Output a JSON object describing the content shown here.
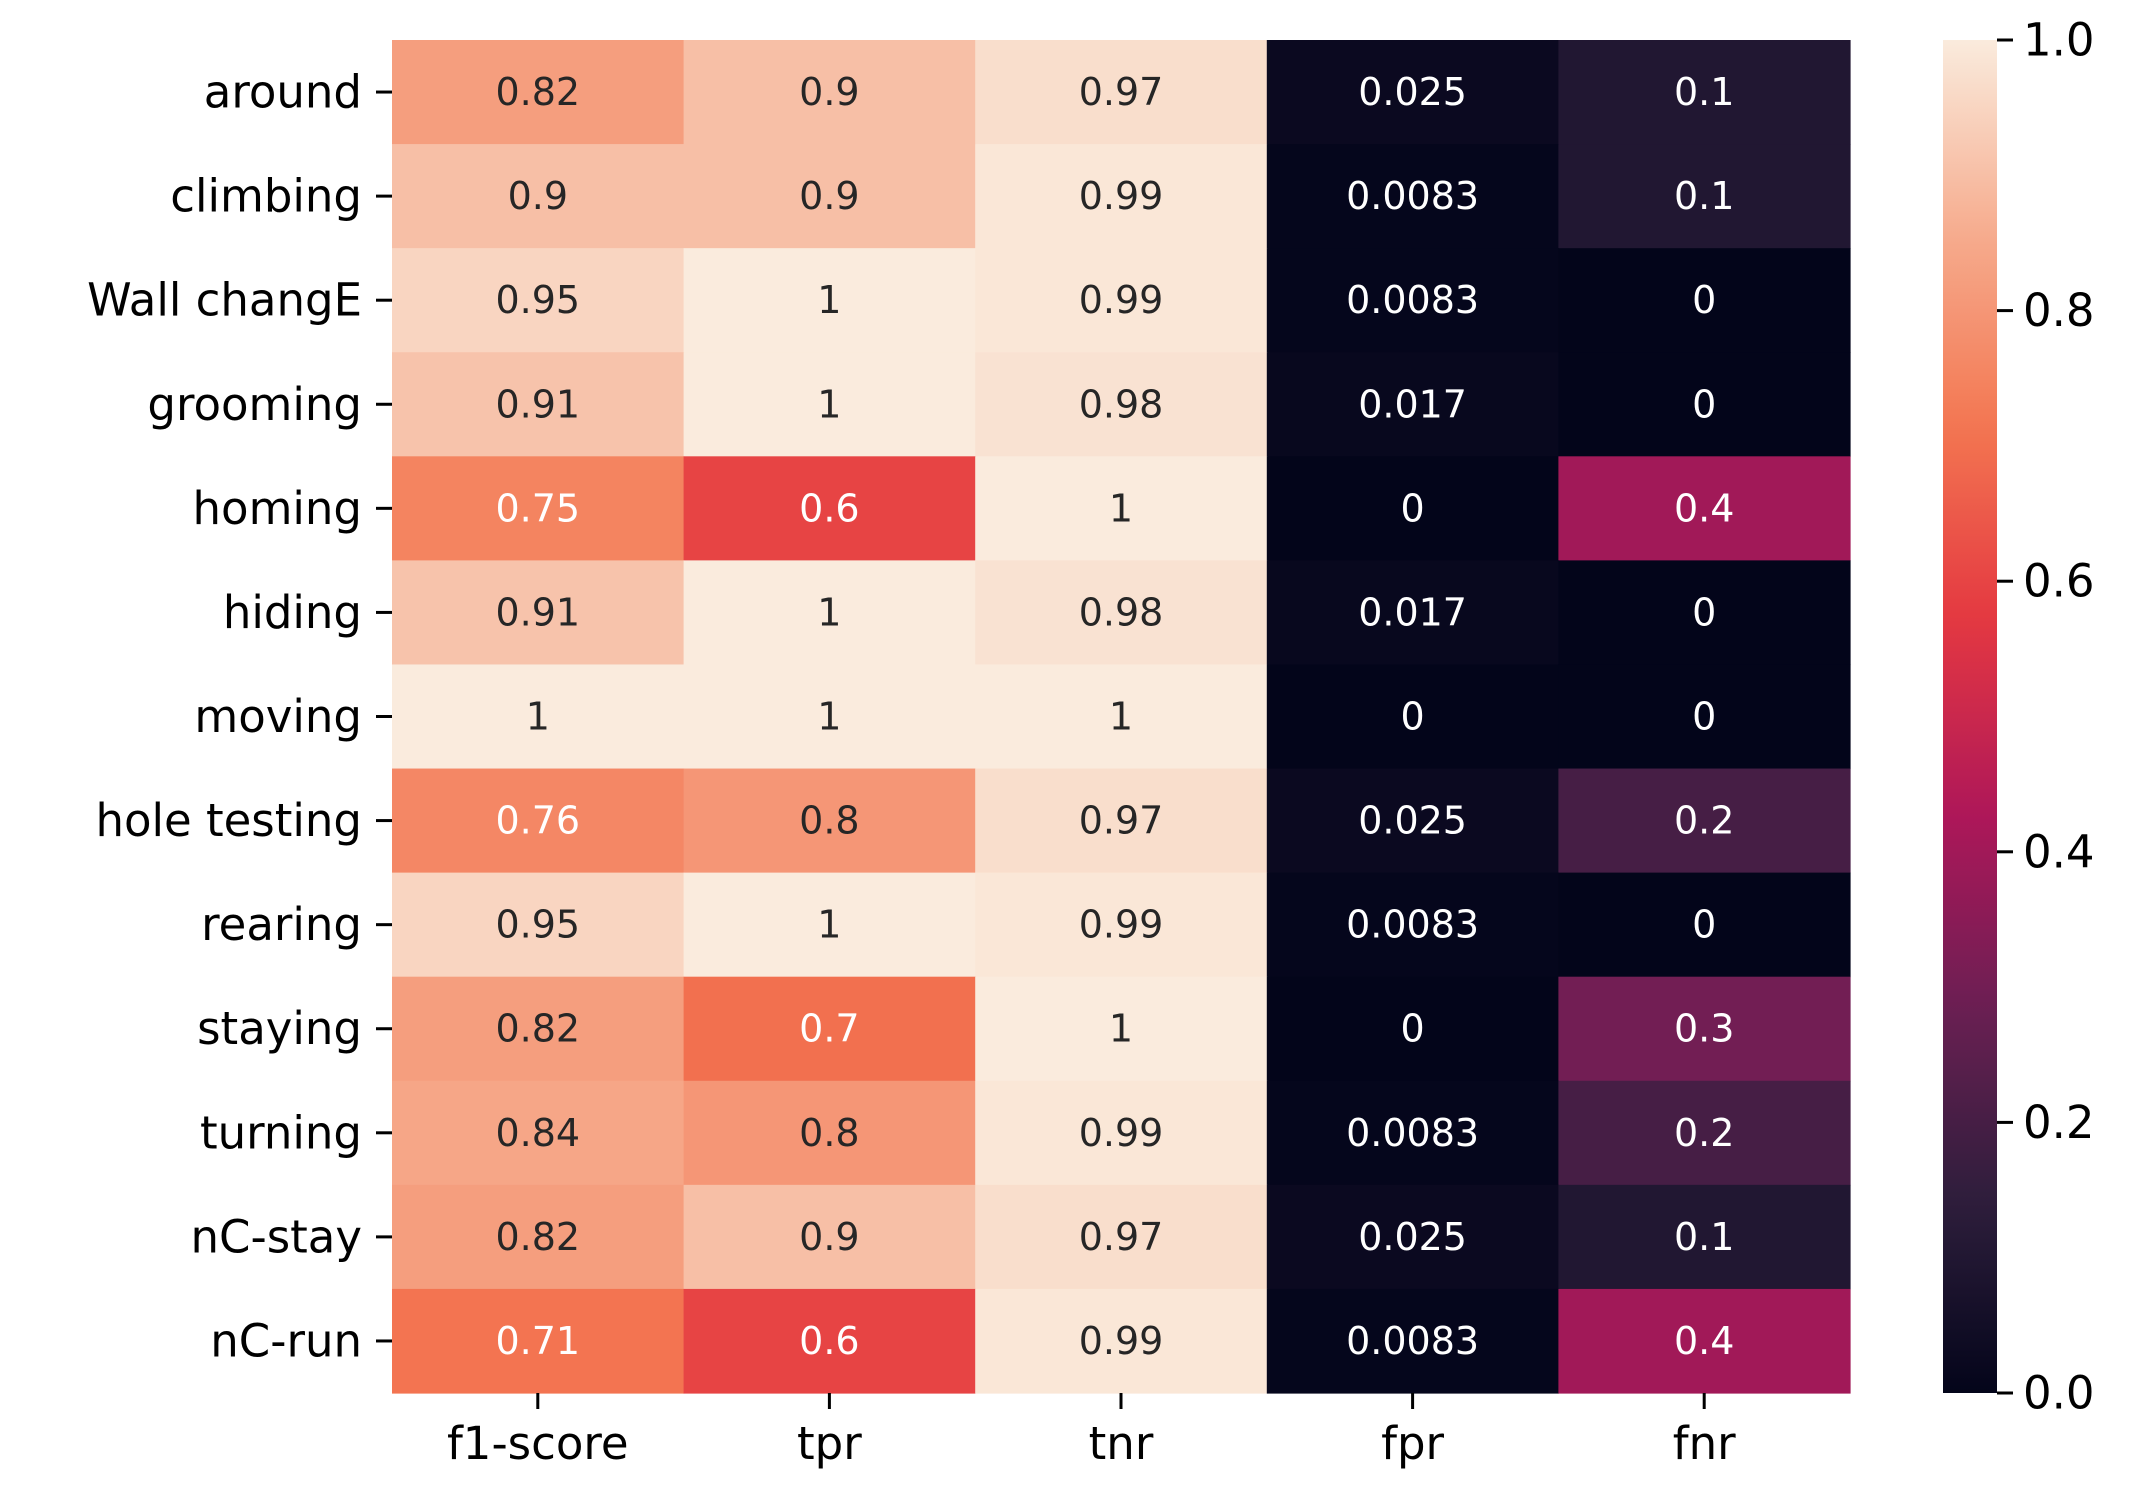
{
  "chart_data": {
    "type": "heatmap",
    "title": "",
    "xlabel": "",
    "ylabel": "",
    "rows": [
      "around",
      "climbing",
      "Wall changE",
      "grooming",
      "homing",
      "hiding",
      "moving",
      "hole testing",
      "rearing",
      "staying",
      "turning",
      "nC-stay",
      "nC-run"
    ],
    "columns": [
      "f1-score",
      "tpr",
      "tnr",
      "fpr",
      "fnr"
    ],
    "values": [
      [
        0.82,
        0.9,
        0.97,
        0.025,
        0.1
      ],
      [
        0.9,
        0.9,
        0.99,
        0.0083,
        0.1
      ],
      [
        0.95,
        1,
        0.99,
        0.0083,
        0
      ],
      [
        0.91,
        1,
        0.98,
        0.017,
        0
      ],
      [
        0.75,
        0.6,
        1,
        0,
        0.4
      ],
      [
        0.91,
        1,
        0.98,
        0.017,
        0
      ],
      [
        1,
        1,
        1,
        0,
        0
      ],
      [
        0.76,
        0.8,
        0.97,
        0.025,
        0.2
      ],
      [
        0.95,
        1,
        0.99,
        0.0083,
        0
      ],
      [
        0.82,
        0.7,
        1,
        0,
        0.3
      ],
      [
        0.84,
        0.8,
        0.99,
        0.0083,
        0.2
      ],
      [
        0.82,
        0.9,
        0.97,
        0.025,
        0.1
      ],
      [
        0.71,
        0.6,
        0.99,
        0.0083,
        0.4
      ]
    ],
    "colorbar": {
      "colormap": "rocket",
      "range": [
        0.0,
        1.0
      ],
      "ticks": [
        0.0,
        0.2,
        0.4,
        0.6,
        0.8,
        1.0
      ],
      "tick_labels": [
        "0.0",
        "0.2",
        "0.4",
        "0.6",
        "0.8",
        "1.0"
      ]
    },
    "annotated": true,
    "grid": false,
    "colors": {
      "rocket_stops": [
        "#03051a",
        "#2e1e3c",
        "#6b1f53",
        "#af1759",
        "#e43841",
        "#f37651",
        "#f6ac8e",
        "#faebdd"
      ],
      "text_dark": "#262626",
      "text_light": "#ffffff",
      "axis_text": "#000000"
    }
  }
}
